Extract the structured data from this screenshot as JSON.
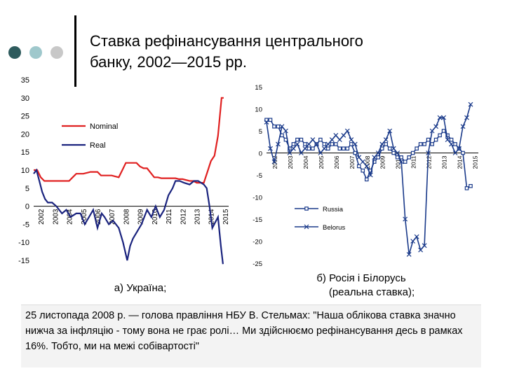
{
  "slide": {
    "title_line1": "Ставка рефінансування центрального",
    "title_line2": "банку, 2002—2015 рр.",
    "caption_a": "а) Україна;",
    "caption_b_line1": "б) Росія і Білорусь",
    "caption_b_line2": "(реальна ставка);",
    "quote": "25 листопада 2008 р. — голова правління НБУ В. Стельмах: \"Наша облікова ставка значно нижча за інфляцію - тому вона не грає ролі… Ми здійснюємо рефінансування десь в рамках 16%. Тобто, ми на межі собівартості\"",
    "dot_colors": [
      "#2e5b5d",
      "#9fc8cc",
      "#c8c8c8"
    ]
  },
  "chart_data": [
    {
      "type": "line",
      "title": "",
      "ylim": [
        -15,
        35
      ],
      "yticks": [
        35,
        30,
        25,
        20,
        15,
        10,
        5,
        0,
        -5,
        -10,
        -15
      ],
      "xticks": [
        "2002",
        "2003",
        "2004",
        "2005",
        "2006",
        "2007",
        "2008",
        "2009",
        "2010",
        "2011",
        "2012",
        "2013",
        "2014",
        "2015"
      ],
      "xlim": [
        2002,
        2015.75
      ],
      "grid": false,
      "legend_position": "top-left",
      "series": [
        {
          "name": "Nominal",
          "color": "#e02020",
          "x": [
            2002,
            2002.25,
            2002.5,
            2002.75,
            2003,
            2003.5,
            2004,
            2004.5,
            2004.75,
            2005,
            2005.5,
            2006,
            2006.5,
            2006.75,
            2007,
            2007.5,
            2008,
            2008.25,
            2008.5,
            2009,
            2009.25,
            2009.5,
            2009.75,
            2010,
            2010.5,
            2010.75,
            2011,
            2011.5,
            2012,
            2012.25,
            2012.5,
            2013,
            2013.25,
            2013.5,
            2014,
            2014.25,
            2014.5,
            2014.75,
            2015,
            2015.25,
            2015.4
          ],
          "values": [
            10,
            10,
            8,
            7,
            7,
            7,
            7,
            7,
            8,
            9,
            9,
            9.5,
            9.5,
            8.5,
            8.5,
            8.5,
            8,
            10,
            12,
            12,
            12,
            11,
            10.5,
            10.5,
            8,
            8,
            7.75,
            7.75,
            7.75,
            7.5,
            7.5,
            7,
            7,
            6.5,
            6.5,
            9.5,
            12.5,
            14,
            19.5,
            30,
            30
          ]
        },
        {
          "name": "Real",
          "color": "#1a237e",
          "x": [
            2002,
            2002.2,
            2002.4,
            2002.6,
            2002.8,
            2003,
            2003.3,
            2003.6,
            2004,
            2004.3,
            2004.6,
            2005,
            2005.3,
            2005.6,
            2005.9,
            2006.2,
            2006.5,
            2006.8,
            2007,
            2007.3,
            2007.6,
            2008,
            2008.3,
            2008.6,
            2008.8,
            2009,
            2009.3,
            2009.6,
            2009.8,
            2010,
            2010.3,
            2010.6,
            2010.9,
            2011.2,
            2011.5,
            2011.8,
            2012,
            2012.3,
            2012.6,
            2013,
            2013.3,
            2013.6,
            2014,
            2014.2,
            2014.4,
            2014.6,
            2015,
            2015.2,
            2015.35
          ],
          "values": [
            9,
            10,
            7,
            4,
            2,
            1,
            1,
            0,
            -2,
            -1,
            -3,
            -2,
            -2,
            -5,
            -3,
            -1,
            -6,
            -2,
            -3,
            -5,
            -4,
            -6,
            -10,
            -15,
            -11,
            -9,
            -7,
            -5,
            -3,
            -1,
            -3,
            0,
            -3,
            -1,
            3,
            5,
            7,
            7,
            6.5,
            6,
            7,
            7,
            6,
            5,
            0,
            -6,
            -3,
            -11,
            -16
          ]
        }
      ]
    },
    {
      "type": "line",
      "title": "",
      "ylim": [
        -25,
        15
      ],
      "yticks": [
        15,
        10,
        5,
        0,
        -5,
        -10,
        -15,
        -20,
        -25
      ],
      "xticks": [
        "2002",
        "2003",
        "2004",
        "2005",
        "2006",
        "2007",
        "2008",
        "2009",
        "2010",
        "2011",
        "2012",
        "2013",
        "2014",
        "2015"
      ],
      "xlim": [
        2002,
        2015.75
      ],
      "grid": false,
      "legend_position": "bottom-left",
      "series": [
        {
          "name": "Russia",
          "color": "#1a3a8a",
          "marker": "square",
          "x": [
            2002,
            2002.25,
            2002.5,
            2002.75,
            2003,
            2003.25,
            2003.5,
            2003.75,
            2004,
            2004.25,
            2004.5,
            2004.75,
            2005,
            2005.25,
            2005.5,
            2005.75,
            2006,
            2006.25,
            2006.5,
            2006.75,
            2007,
            2007.25,
            2007.5,
            2007.75,
            2008,
            2008.25,
            2008.5,
            2008.75,
            2009,
            2009.25,
            2009.5,
            2009.75,
            2010,
            2010.25,
            2010.5,
            2010.75,
            2011,
            2011.25,
            2011.5,
            2011.75,
            2012,
            2012.25,
            2012.5,
            2012.75,
            2013,
            2013.25,
            2013.5,
            2013.75,
            2014,
            2014.25,
            2014.5,
            2014.75,
            2015,
            2015.25
          ],
          "values": [
            7.5,
            7.5,
            6,
            6,
            4,
            3,
            1,
            2,
            3,
            3,
            2,
            1,
            1,
            2,
            3,
            2,
            1,
            2,
            2,
            1,
            1,
            1,
            2,
            0,
            -3,
            -4,
            -6,
            -4,
            -2,
            -1,
            1,
            2,
            1,
            0,
            -1,
            -1,
            -2,
            -1,
            0,
            1,
            2,
            2,
            3,
            2,
            3,
            4,
            5,
            4,
            3,
            2,
            1,
            0,
            -8,
            -7.5
          ]
        },
        {
          "name": "Belorus",
          "color": "#1a3a8a",
          "marker": "x",
          "x": [
            2002,
            2002.25,
            2002.5,
            2002.75,
            2003,
            2003.25,
            2003.5,
            2003.75,
            2004,
            2004.25,
            2004.5,
            2004.75,
            2005,
            2005.25,
            2005.5,
            2005.75,
            2006,
            2006.25,
            2006.5,
            2006.75,
            2007,
            2007.25,
            2007.5,
            2007.75,
            2008,
            2008.25,
            2008.5,
            2008.75,
            2009,
            2009.25,
            2009.5,
            2009.75,
            2010,
            2010.25,
            2010.5,
            2010.75,
            2011,
            2011.25,
            2011.5,
            2011.75,
            2012,
            2012.25,
            2012.5,
            2012.75,
            2013,
            2013.25,
            2013.5,
            2013.75,
            2014,
            2014.25,
            2014.5,
            2014.75,
            2015,
            2015.25
          ],
          "values": [
            7,
            1,
            -2,
            2,
            6,
            5,
            0,
            1,
            2,
            0,
            1,
            2,
            3,
            2,
            0,
            1,
            2,
            3,
            4,
            3,
            4,
            5,
            3,
            2,
            -1,
            -2,
            -3,
            -5,
            -1,
            0,
            2,
            3,
            5,
            1,
            0,
            -2,
            -15,
            -23,
            -20,
            -19,
            -22,
            -21,
            0,
            5,
            6,
            8,
            8,
            3,
            2,
            0,
            1,
            6,
            8,
            11
          ]
        }
      ]
    }
  ]
}
